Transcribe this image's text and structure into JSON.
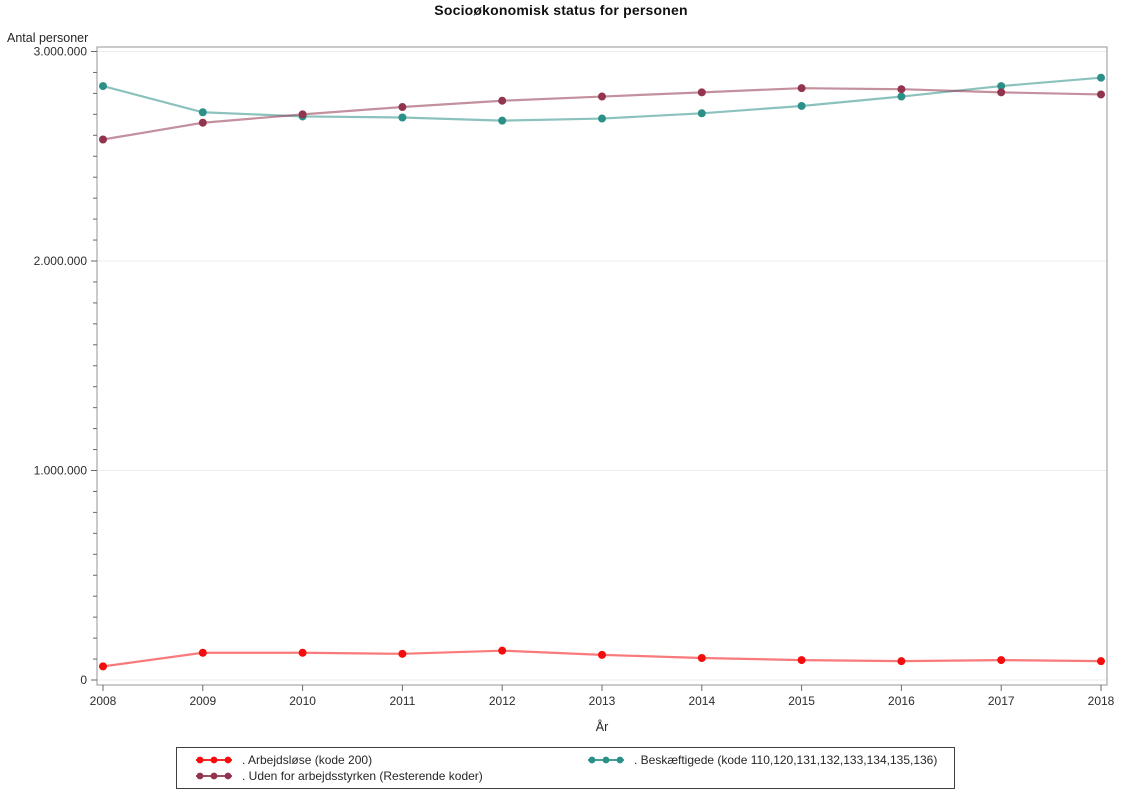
{
  "chart": {
    "title": "Socioøkonomisk status for personen",
    "y_axis_title": "Antal personer",
    "x_axis_title": "År"
  },
  "colors": {
    "unemployed": "#f40d0d",
    "employed": "#2b9087",
    "outside_workforce": "#92344e",
    "frame": "#a6a6a6",
    "gridline": "#ececec",
    "tick": "#696969",
    "legend_border": "#3f3f3f"
  },
  "legend": {
    "entries": [
      {
        "id": "arbejdsloese",
        "label": ". Arbejdsløse (kode 200)",
        "color": "#f40d0d"
      },
      {
        "id": "beskaeftigede",
        "label": ". Beskæftigede (kode 110,120,131,132,133,134,135,136)",
        "color": "#2b9087"
      },
      {
        "id": "uden-for-arbejdsstyrken",
        "label": ". Uden for arbejdsstyrken (Resterende koder)",
        "color": "#92344e"
      }
    ]
  },
  "chart_data": {
    "type": "line",
    "title": "Socioøkonomisk status for personen",
    "xlabel": "År",
    "ylabel": "Antal personer",
    "x": [
      2008,
      2009,
      2010,
      2011,
      2012,
      2013,
      2014,
      2015,
      2016,
      2017,
      2018
    ],
    "x_tick_labels": [
      "2008",
      "2009",
      "2010",
      "2011",
      "2012",
      "2013",
      "2014",
      "2015",
      "2016",
      "2017",
      "2018"
    ],
    "series": [
      {
        "name": ". Beskæftigede (kode 110,120,131,132,133,134,135,136)",
        "id": "beskaeftigede",
        "color": "#2b9087",
        "values": [
          2835000,
          2710000,
          2690000,
          2685000,
          2670000,
          2680000,
          2705000,
          2740000,
          2785000,
          2835000,
          2875000
        ]
      },
      {
        "name": ". Uden for arbejdsstyrken (Resterende koder)",
        "id": "uden-for-arbejdsstyrken",
        "color": "#92344e",
        "values": [
          2580000,
          2660000,
          2700000,
          2735000,
          2765000,
          2785000,
          2805000,
          2825000,
          2820000,
          2805000,
          2795000
        ]
      },
      {
        "name": ". Arbejdsløse (kode 200)",
        "id": "arbejdsloese",
        "color": "#f40d0d",
        "values": [
          65000,
          130000,
          130000,
          125000,
          140000,
          120000,
          105000,
          95000,
          90000,
          95000,
          90000
        ]
      }
    ],
    "ylim": [
      0,
      3000000
    ],
    "y_tick_values": [
      0,
      1000000,
      2000000,
      3000000
    ],
    "y_tick_labels": [
      "0",
      "1.000.000",
      "2.000.000",
      "3.000.000"
    ],
    "y_minor_tick_interval": 100000,
    "grid": true,
    "legend_position": "bottom",
    "marker": "circle"
  }
}
